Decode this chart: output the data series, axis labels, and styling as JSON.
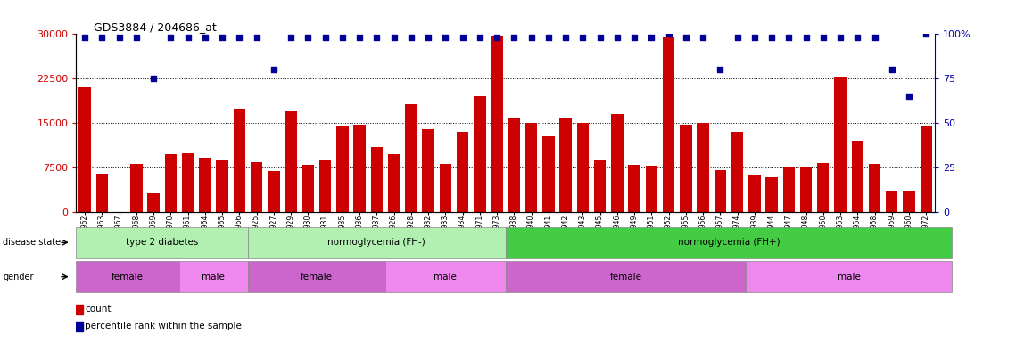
{
  "title": "GDS3884 / 204686_at",
  "samples": [
    "GSM624962",
    "GSM624963",
    "GSM624967",
    "GSM624968",
    "GSM624969",
    "GSM624970",
    "GSM624961",
    "GSM624964",
    "GSM624965",
    "GSM624966",
    "GSM624925",
    "GSM624927",
    "GSM624929",
    "GSM624930",
    "GSM624931",
    "GSM624935",
    "GSM624936",
    "GSM624937",
    "GSM624926",
    "GSM624928",
    "GSM624932",
    "GSM624933",
    "GSM624934",
    "GSM624971",
    "GSM624973",
    "GSM624938",
    "GSM624940",
    "GSM624941",
    "GSM624942",
    "GSM624943",
    "GSM624945",
    "GSM624946",
    "GSM624949",
    "GSM624951",
    "GSM624952",
    "GSM624955",
    "GSM624956",
    "GSM624957",
    "GSM624974",
    "GSM624939",
    "GSM624944",
    "GSM624947",
    "GSM624948",
    "GSM624950",
    "GSM624953",
    "GSM624954",
    "GSM624958",
    "GSM624959",
    "GSM624960",
    "GSM624972"
  ],
  "counts": [
    21000,
    6500,
    0,
    8200,
    3200,
    9800,
    9900,
    9200,
    8800,
    17500,
    8500,
    6900,
    17000,
    8000,
    8700,
    14500,
    14700,
    11000,
    9800,
    18200,
    14000,
    8200,
    13500,
    19500,
    29700,
    16000,
    15000,
    12800,
    16000,
    15000,
    8800,
    16500,
    8000,
    7800,
    29500,
    14800,
    15000,
    7000,
    13500,
    6200,
    5800,
    7500,
    7600,
    8300,
    22800,
    12000,
    8200,
    3600,
    3500,
    14500
  ],
  "percentiles": [
    98,
    98,
    98,
    98,
    75,
    98,
    98,
    98,
    98,
    98,
    98,
    80,
    98,
    98,
    98,
    98,
    98,
    98,
    98,
    98,
    98,
    98,
    98,
    98,
    98,
    98,
    98,
    98,
    98,
    98,
    98,
    98,
    98,
    98,
    100,
    98,
    98,
    80,
    98,
    98,
    98,
    98,
    98,
    98,
    98,
    98,
    98,
    80,
    65,
    100
  ],
  "disease_state_groups": [
    {
      "label": "type 2 diabetes",
      "start": 0,
      "end": 9,
      "color": "#b2f0b2"
    },
    {
      "label": "normoglycemia (FH-)",
      "start": 10,
      "end": 24,
      "color": "#b2f0b2"
    },
    {
      "label": "normoglycemia (FH+)",
      "start": 25,
      "end": 50,
      "color": "#44cc44"
    }
  ],
  "gender_groups": [
    {
      "label": "female",
      "start": 0,
      "end": 5,
      "color": "#cc66cc"
    },
    {
      "label": "male",
      "start": 6,
      "end": 9,
      "color": "#ee88ee"
    },
    {
      "label": "female",
      "start": 10,
      "end": 17,
      "color": "#cc66cc"
    },
    {
      "label": "male",
      "start": 18,
      "end": 24,
      "color": "#ee88ee"
    },
    {
      "label": "female",
      "start": 25,
      "end": 38,
      "color": "#cc66cc"
    },
    {
      "label": "male",
      "start": 39,
      "end": 50,
      "color": "#ee88ee"
    }
  ],
  "bar_color": "#CC0000",
  "scatter_color": "#000099",
  "ylim_left": [
    0,
    30000
  ],
  "ylim_right": [
    0,
    100
  ],
  "yticks_left": [
    0,
    7500,
    15000,
    22500,
    30000
  ],
  "yticks_right": [
    0,
    25,
    50,
    75,
    100
  ],
  "grid_dotted_values": [
    7500,
    15000,
    22500
  ],
  "bar_width": 0.7
}
